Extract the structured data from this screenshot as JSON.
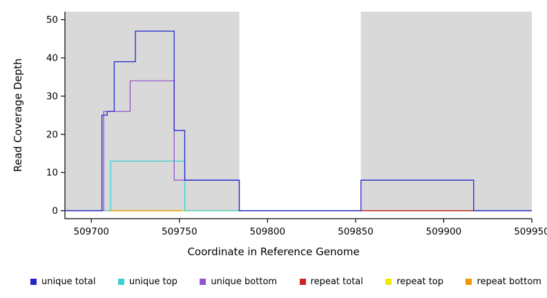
{
  "chart_data": {
    "type": "line",
    "subtype": "step-coverage-plot",
    "title": "",
    "xlabel": "Coordinate in Reference Genome",
    "ylabel": "Read Coverage Depth",
    "grid": false,
    "x_axis": {
      "min": 509685,
      "max": 509950,
      "ticks": [
        509700,
        509750,
        509800,
        509850,
        509900,
        509950
      ]
    },
    "y_axis": {
      "min": -2.08,
      "max": 52.08,
      "ticks": [
        0,
        10,
        20,
        30,
        40,
        50
      ]
    },
    "shaded_regions": [
      {
        "name": "shaded-region-left",
        "x0": 509685,
        "x1": 509784,
        "y0": 0,
        "color": "#d9d9d9"
      },
      {
        "name": "shaded-region-right",
        "x0": 509853,
        "x1": 509950,
        "y0": 0,
        "color": "#d9d9d9"
      }
    ],
    "series": [
      {
        "name": "repeat top",
        "color": "#EDE800",
        "points": [
          [
            509685,
            0
          ],
          [
            509950,
            0
          ]
        ]
      },
      {
        "name": "unique top",
        "color": "#3BCFCF",
        "points": [
          [
            509685,
            0
          ],
          [
            509711,
            0
          ],
          [
            509711,
            13
          ],
          [
            509753,
            13
          ],
          [
            509753,
            0
          ],
          [
            509950,
            0
          ]
        ]
      },
      {
        "name": "repeat bottom",
        "color": "#EE9500",
        "points": [
          [
            509710,
            0
          ],
          [
            509752,
            0
          ]
        ]
      },
      {
        "name": "unique bottom",
        "color": "#9355CC",
        "points": [
          [
            509685,
            0
          ],
          [
            509707,
            0
          ],
          [
            509707,
            26
          ],
          [
            509722,
            26
          ],
          [
            509722,
            34
          ],
          [
            509747,
            34
          ],
          [
            509747,
            8
          ],
          [
            509784,
            8
          ],
          [
            509784,
            0
          ],
          [
            509950,
            0
          ]
        ]
      },
      {
        "name": "repeat total",
        "color": "#CC2222",
        "points": [
          [
            509853,
            0
          ],
          [
            509917,
            0
          ]
        ]
      },
      {
        "name": "unique total",
        "color": "#2424CE",
        "points": [
          [
            509685,
            0
          ],
          [
            509706,
            0
          ],
          [
            509706,
            25
          ],
          [
            509709,
            25
          ],
          [
            509709,
            26
          ],
          [
            509713,
            26
          ],
          [
            509713,
            39
          ],
          [
            509725,
            39
          ],
          [
            509725,
            47
          ],
          [
            509747,
            47
          ],
          [
            509747,
            21
          ],
          [
            509753,
            21
          ],
          [
            509753,
            8
          ],
          [
            509784,
            8
          ],
          [
            509784,
            0
          ],
          [
            509853,
            0
          ],
          [
            509853,
            8
          ],
          [
            509917,
            8
          ],
          [
            509917,
            0
          ],
          [
            509950,
            0
          ]
        ]
      }
    ],
    "axis_color": "#000000"
  },
  "legend": {
    "order": [
      "unique total",
      "unique top",
      "unique bottom",
      "repeat total",
      "repeat top",
      "repeat bottom"
    ]
  }
}
